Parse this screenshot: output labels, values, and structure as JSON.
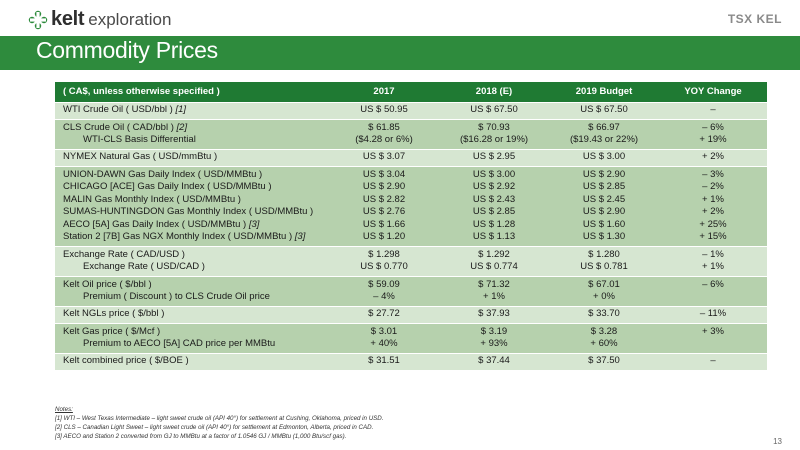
{
  "logo": {
    "bold": "kelt",
    "light": "exploration"
  },
  "tsx": "TSX KEL",
  "title": "Commodity Prices",
  "table": {
    "headers": [
      "( CA$, unless otherwise specified )",
      "2017",
      "2018 (E)",
      "2019 Budget",
      "YOY Change"
    ],
    "rows": [
      {
        "tone": "light",
        "labels": [
          {
            "text": "WTI Crude Oil ( USD/bbl ) ",
            "fn": "[1]",
            "indent": false
          }
        ],
        "cells": [
          [
            "US $ 50.95"
          ],
          [
            "US $ 67.50"
          ],
          [
            "US $ 67.50"
          ],
          [
            "–"
          ]
        ]
      },
      {
        "tone": "dark",
        "labels": [
          {
            "text": "CLS Crude Oil ( CAD/bbl ) ",
            "fn": "[2]",
            "indent": false
          },
          {
            "text": "WTI-CLS Basis Differential",
            "fn": "",
            "indent": true
          }
        ],
        "cells": [
          [
            "$ 61.85",
            "($4.28 or 6%)"
          ],
          [
            "$ 70.93",
            "($16.28 or 19%)"
          ],
          [
            "$ 66.97",
            "($19.43 or 22%)"
          ],
          [
            "– 6%",
            "+ 19%"
          ]
        ]
      },
      {
        "tone": "light",
        "labels": [
          {
            "text": "NYMEX Natural Gas ( USD/mmBtu )",
            "fn": "",
            "indent": false
          }
        ],
        "cells": [
          [
            "US $ 3.07"
          ],
          [
            "US $ 2.95"
          ],
          [
            "US $ 3.00"
          ],
          [
            "+ 2%"
          ]
        ]
      },
      {
        "tone": "dark",
        "labels": [
          {
            "text": "UNION-DAWN Gas Daily Index ( USD/MMBtu )",
            "fn": "",
            "indent": false
          },
          {
            "text": "CHICAGO [ACE] Gas Daily Index ( USD/MMBtu )",
            "fn": "",
            "indent": false
          },
          {
            "text": "MALIN Gas Monthly Index ( USD/MMBtu )",
            "fn": "",
            "indent": false
          },
          {
            "text": "SUMAS-HUNTINGDON Gas Monthly Index ( USD/MMBtu )",
            "fn": "",
            "indent": false
          },
          {
            "text": "AECO [5A] Gas Daily Index ( USD/MMBtu ) ",
            "fn": "[3]",
            "indent": false
          },
          {
            "text": "Station 2 [7B] Gas NGX Monthly Index ( USD/MMBtu ) ",
            "fn": "[3]",
            "indent": false
          }
        ],
        "cells": [
          [
            "US $ 3.04",
            "US $ 2.90",
            "US $ 2.82",
            "US $ 2.76",
            "US $ 1.66",
            "US $ 1.20"
          ],
          [
            "US $ 3.00",
            "US $ 2.92",
            "US $ 2.43",
            "US $ 2.85",
            "US $ 1.28",
            "US $ 1.13"
          ],
          [
            "US $ 2.90",
            "US $ 2.85",
            "US $ 2.45",
            "US $ 2.90",
            "US $ 1.60",
            "US $ 1.30"
          ],
          [
            "– 3%",
            "– 2%",
            "+ 1%",
            "+ 2%",
            "+ 25%",
            "+ 15%"
          ]
        ]
      },
      {
        "tone": "light",
        "labels": [
          {
            "text": "Exchange Rate ( CAD/USD )",
            "fn": "",
            "indent": false
          },
          {
            "text": "Exchange Rate ( USD/CAD )",
            "fn": "",
            "indent": true
          }
        ],
        "cells": [
          [
            "$ 1.298",
            "US $ 0.770"
          ],
          [
            "$ 1.292",
            "US $ 0.774"
          ],
          [
            "$ 1.280",
            "US $ 0.781"
          ],
          [
            "– 1%",
            "+ 1%"
          ]
        ]
      },
      {
        "tone": "dark",
        "labels": [
          {
            "text": "Kelt Oil price ( $/bbl )",
            "fn": "",
            "indent": false
          },
          {
            "text": "Premium ( Discount ) to CLS Crude Oil price",
            "fn": "",
            "indent": true
          }
        ],
        "cells": [
          [
            "$ 59.09",
            "– 4%"
          ],
          [
            "$ 71.32",
            "+ 1%"
          ],
          [
            "$ 67.01",
            "+ 0%"
          ],
          [
            "– 6%",
            ""
          ]
        ]
      },
      {
        "tone": "light",
        "labels": [
          {
            "text": "Kelt NGLs price ( $/bbl )",
            "fn": "",
            "indent": false
          }
        ],
        "cells": [
          [
            "$ 27.72"
          ],
          [
            "$ 37.93"
          ],
          [
            "$ 33.70"
          ],
          [
            "– 11%"
          ]
        ]
      },
      {
        "tone": "dark",
        "labels": [
          {
            "text": "Kelt Gas price ( $/Mcf )",
            "fn": "",
            "indent": false
          },
          {
            "text": "Premium to AECO [5A] CAD price per MMBtu",
            "fn": "",
            "indent": true
          }
        ],
        "cells": [
          [
            "$ 3.01",
            "+ 40%"
          ],
          [
            "$ 3.19",
            "+ 93%"
          ],
          [
            "$ 3.28",
            "+ 60%"
          ],
          [
            "+ 3%",
            ""
          ]
        ]
      },
      {
        "tone": "light",
        "labels": [
          {
            "text": "Kelt combined price ( $/BOE )",
            "fn": "",
            "indent": false
          }
        ],
        "cells": [
          [
            "$ 31.51"
          ],
          [
            "$ 37.44"
          ],
          [
            "$ 37.50"
          ],
          [
            "–"
          ]
        ]
      }
    ]
  },
  "notes": {
    "heading": "Notes:",
    "lines": [
      "[1]  WTI – West Texas Intermediate – light sweet crude oil (API 40°) for settlement at Cushing, Oklahoma, priced in USD.",
      "[2]  CLS – Canadian Light Sweet – light sweet crude oil (API 40°) for settlement at Edmonton, Alberta, priced in CAD.",
      "[3]  AECO and Station 2 converted from GJ to MMBtu at a factor of 1.0546 GJ / MMBtu (1,000 Btu/scf gas)."
    ]
  },
  "page_number": "13",
  "colors": {
    "brand_green": "#2e8b3d",
    "header_green": "#1f7a33",
    "row_light": "#d6e6d1",
    "row_dark": "#b6d1ad"
  }
}
